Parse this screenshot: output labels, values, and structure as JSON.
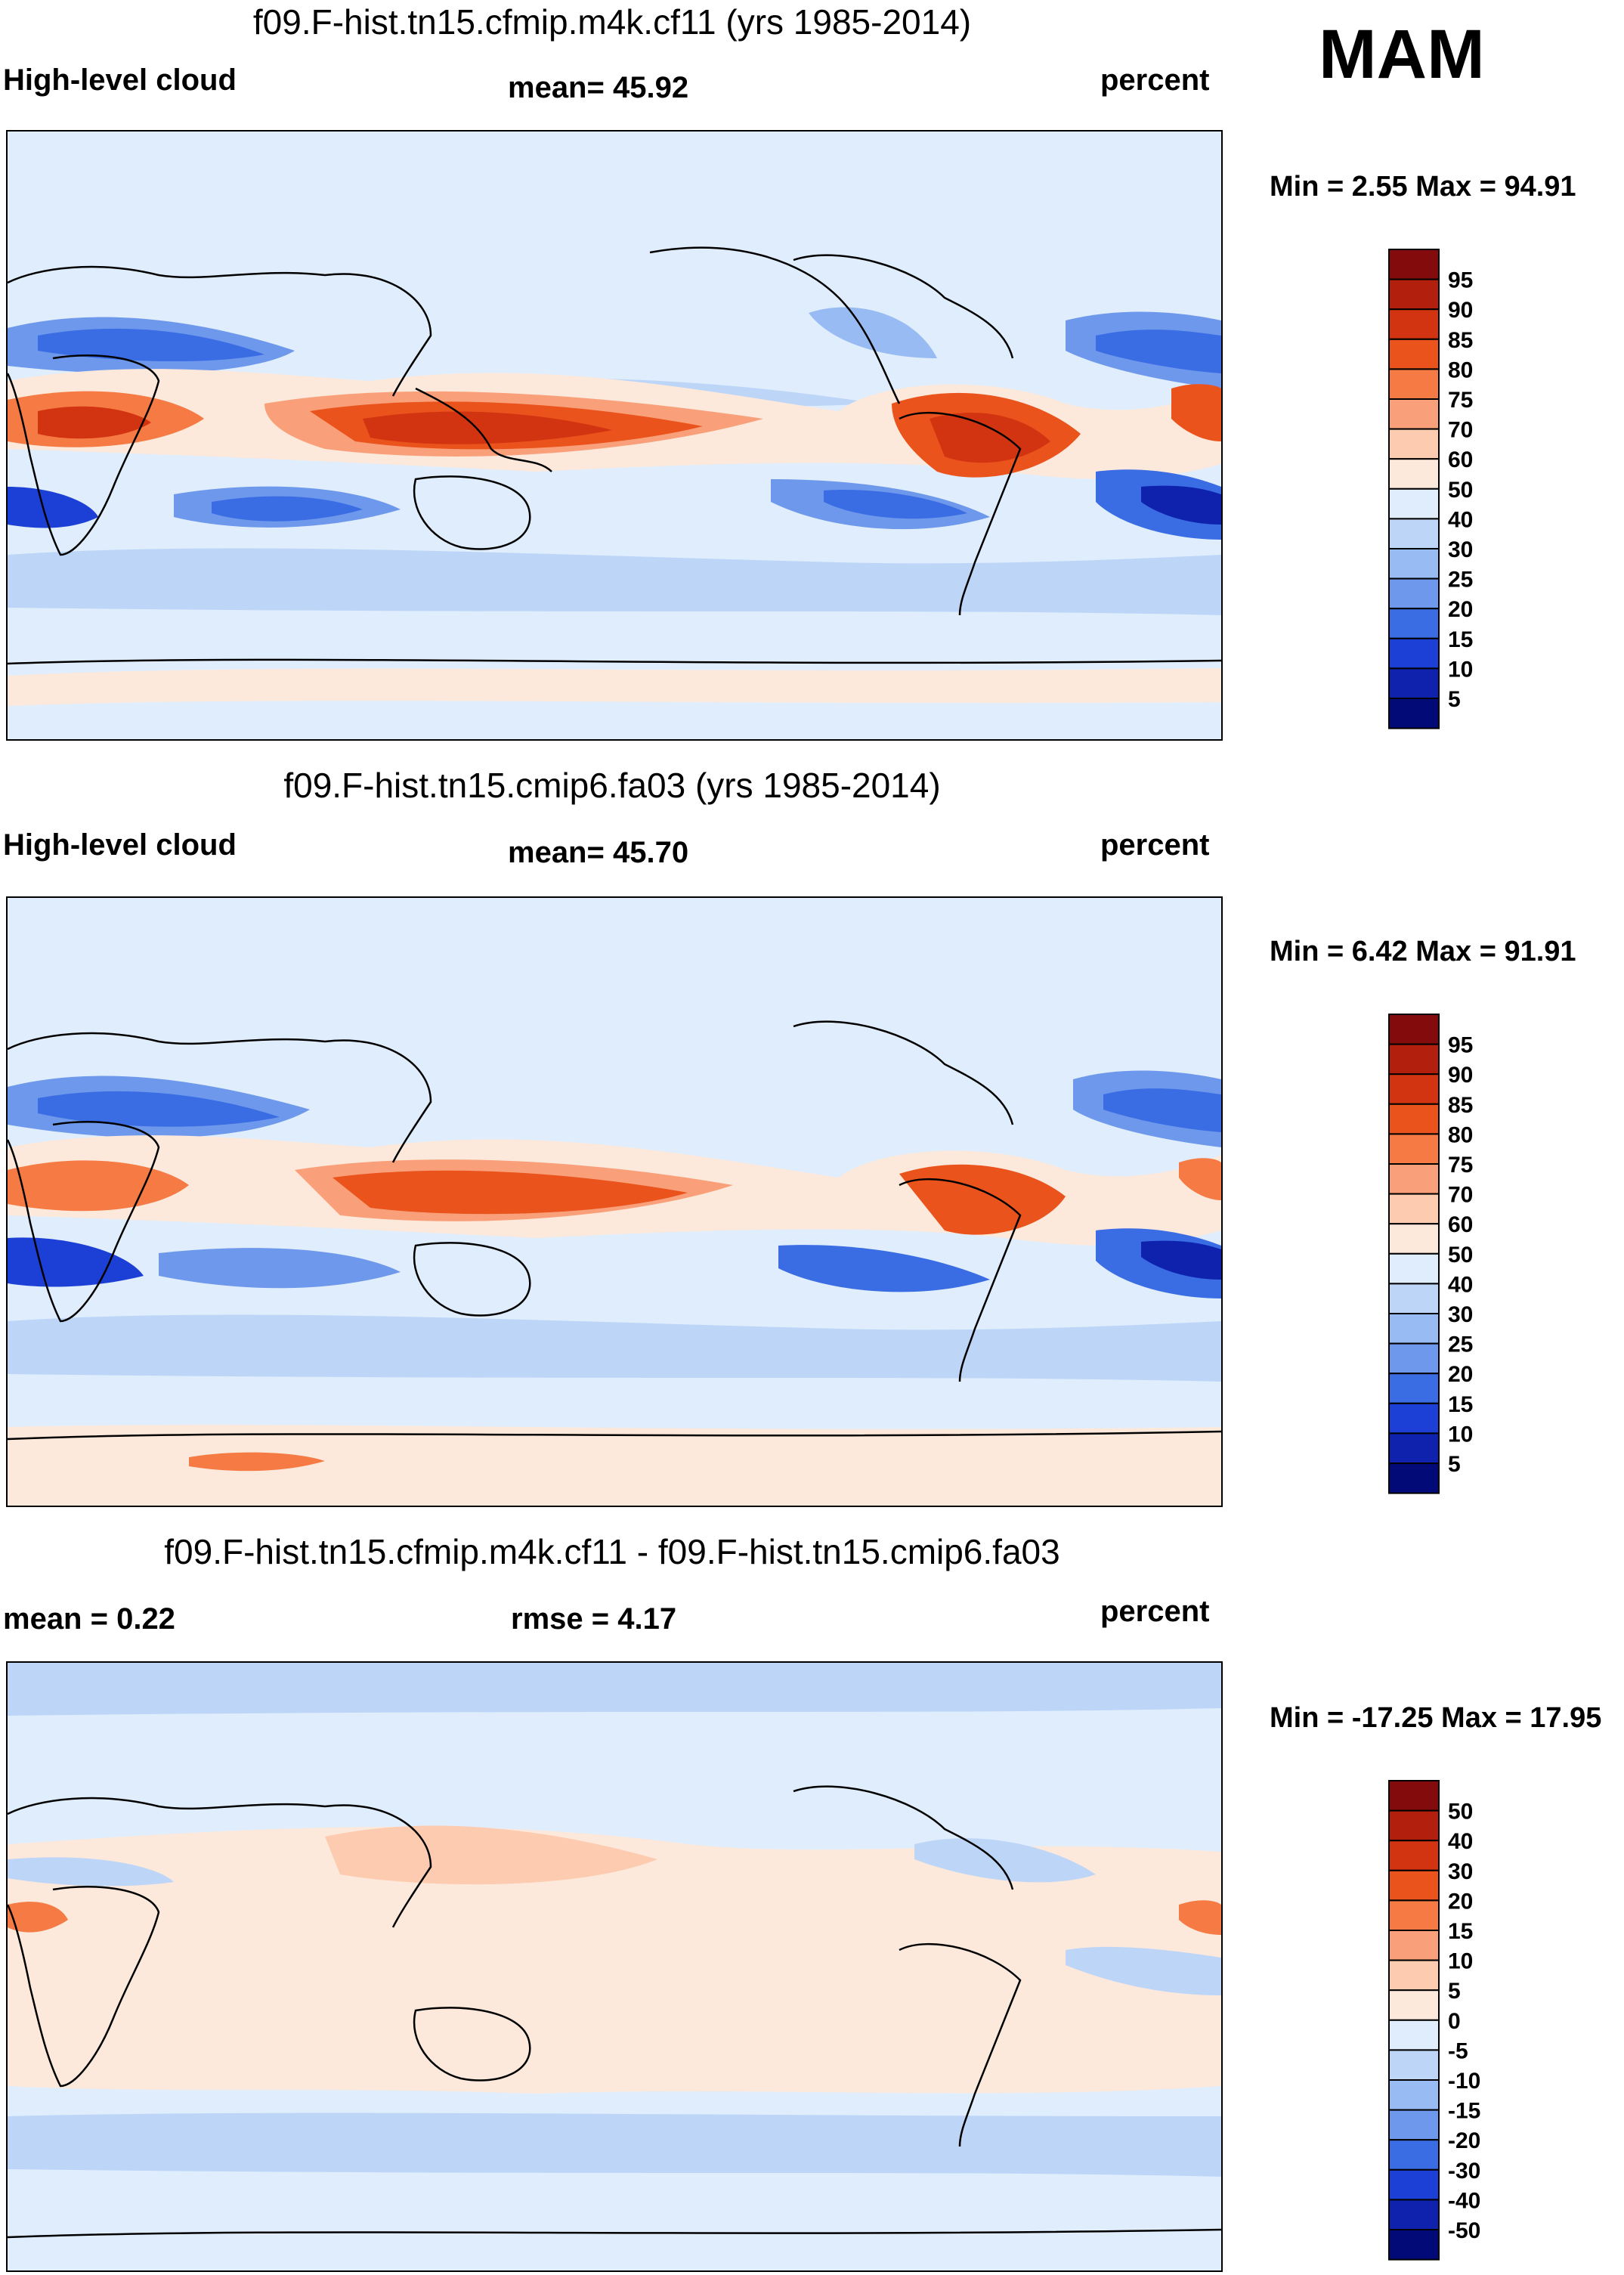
{
  "season": "MAM",
  "panels": [
    {
      "title": "f09.F-hist.tn15.cfmip.m4k.cf11 (yrs 1985-2014)",
      "left_label": "High-level cloud",
      "center_label": "mean=  45.92",
      "units": "percent",
      "minmax": "Min =   2.55 Max =  94.91",
      "colorbar_labels": [
        "95",
        "90",
        "85",
        "80",
        "75",
        "70",
        "60",
        "50",
        "40",
        "30",
        "25",
        "20",
        "15",
        "10",
        "5"
      ],
      "colors": [
        "#830b0b",
        "#b2200d",
        "#d23412",
        "#ea531c",
        "#f57a44",
        "#f9a07a",
        "#fccbb0",
        "#fde9db",
        "#dfedfc",
        "#bdd6f8",
        "#97bbf2",
        "#6e98eb",
        "#3a6ce4",
        "#1c40d6",
        "#0e22ad",
        "#020a78"
      ]
    },
    {
      "title": "f09.F-hist.tn15.cmip6.fa03 (yrs 1985-2014)",
      "left_label": "High-level cloud",
      "center_label": "mean=  45.70",
      "units": "percent",
      "minmax": "Min =   6.42 Max =  91.91",
      "colorbar_labels": [
        "95",
        "90",
        "85",
        "80",
        "75",
        "70",
        "60",
        "50",
        "40",
        "30",
        "25",
        "20",
        "15",
        "10",
        "5"
      ],
      "colors": [
        "#830b0b",
        "#b2200d",
        "#d23412",
        "#ea531c",
        "#f57a44",
        "#f9a07a",
        "#fccbb0",
        "#fde9db",
        "#dfedfc",
        "#bdd6f8",
        "#97bbf2",
        "#6e98eb",
        "#3a6ce4",
        "#1c40d6",
        "#0e22ad",
        "#020a78"
      ]
    },
    {
      "title": "f09.F-hist.tn15.cfmip.m4k.cf11 - f09.F-hist.tn15.cmip6.fa03",
      "left_label": "mean =   0.22",
      "center_label": "rmse =    4.17",
      "units": "percent",
      "minmax": "Min = -17.25 Max =  17.95",
      "colorbar_labels": [
        "50",
        "40",
        "30",
        "20",
        "15",
        "10",
        "5",
        "0",
        "-5",
        "-10",
        "-15",
        "-20",
        "-30",
        "-40",
        "-50"
      ],
      "colors": [
        "#830b0b",
        "#b2200d",
        "#d23412",
        "#ea531c",
        "#f57a44",
        "#f9a07a",
        "#fccbb0",
        "#fde9db",
        "#dfedfc",
        "#bdd6f8",
        "#97bbf2",
        "#6e98eb",
        "#3a6ce4",
        "#1c40d6",
        "#0e22ad",
        "#020a78"
      ]
    }
  ]
}
